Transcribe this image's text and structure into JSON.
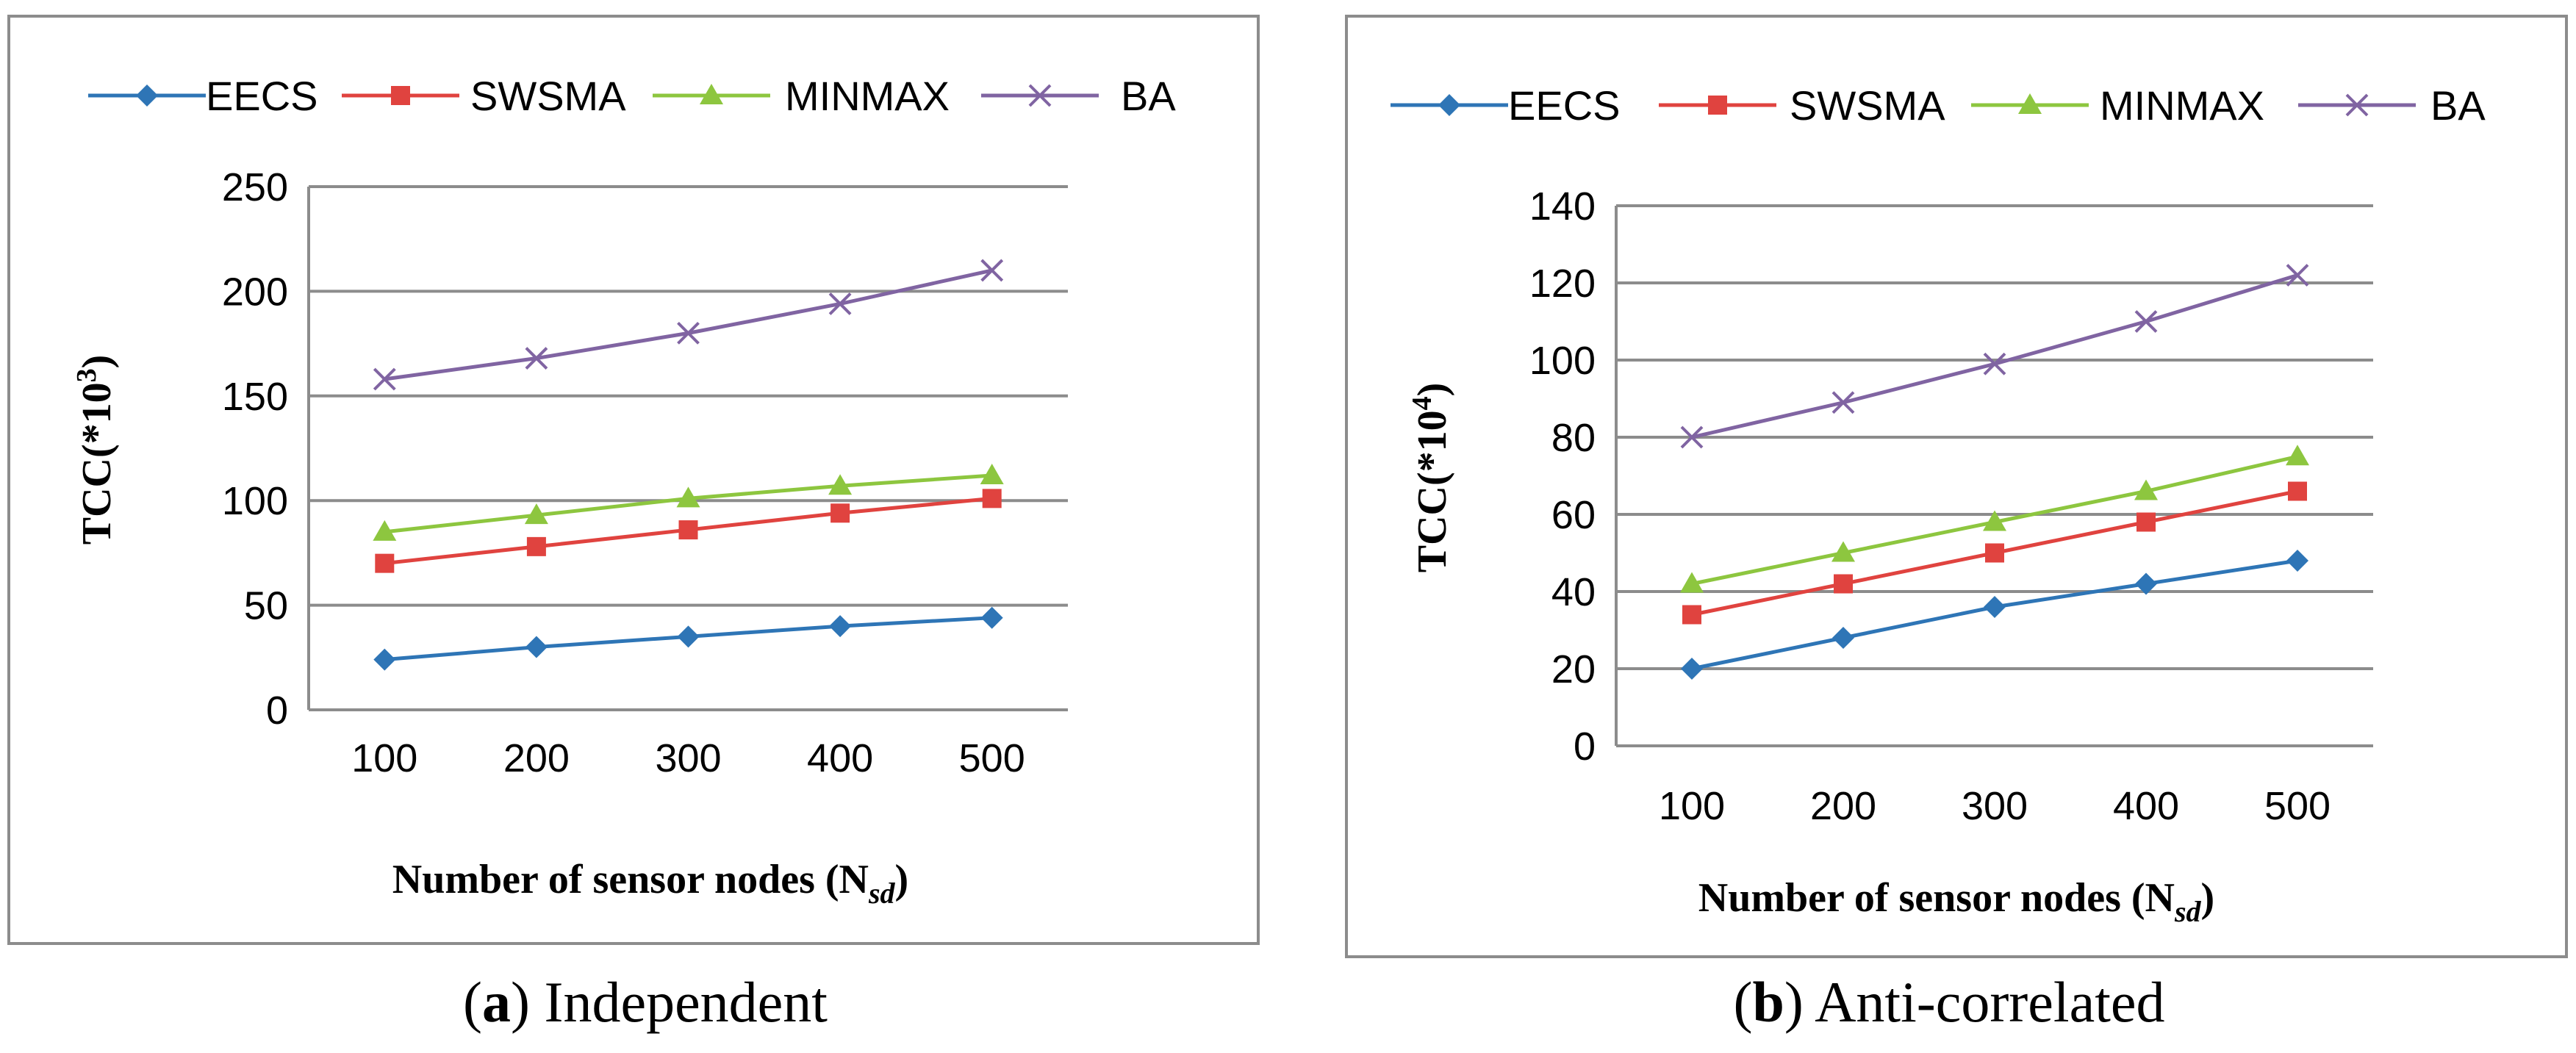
{
  "chart_data": [
    {
      "type": "line",
      "panel_label": "a",
      "caption": "Independent",
      "categories": [
        "100",
        "200",
        "300",
        "400",
        "500"
      ],
      "x": [
        100,
        200,
        300,
        400,
        500
      ],
      "ylim": [
        0,
        250
      ],
      "yticks": [
        "0",
        "50",
        "100",
        "150",
        "200",
        "250"
      ],
      "xlabel_main": "Number of sensor nodes (N",
      "xlabel_sub": "sd",
      "xlabel_close": ")",
      "ylabel_main": "TCC(*10",
      "ylabel_sup": "3",
      "ylabel_close": ")",
      "grid": true,
      "legend_position": "top",
      "series": [
        {
          "name": "EECS",
          "color": "#2E75B6",
          "marker": "diamond",
          "values": [
            24,
            30,
            35,
            40,
            44
          ]
        },
        {
          "name": "SWSMA",
          "color": "#E0433F",
          "marker": "square",
          "values": [
            70,
            78,
            86,
            94,
            101
          ]
        },
        {
          "name": "MINMAX",
          "color": "#8DC63F",
          "marker": "triangle",
          "values": [
            85,
            93,
            101,
            107,
            112
          ]
        },
        {
          "name": "BA",
          "color": "#8064A2",
          "marker": "x",
          "values": [
            158,
            168,
            180,
            194,
            210
          ]
        }
      ]
    },
    {
      "type": "line",
      "panel_label": "b",
      "caption": "Anti-correlated",
      "categories": [
        "100",
        "200",
        "300",
        "400",
        "500"
      ],
      "x": [
        100,
        200,
        300,
        400,
        500
      ],
      "ylim": [
        0,
        140
      ],
      "yticks": [
        "0",
        "20",
        "40",
        "60",
        "80",
        "100",
        "120",
        "140"
      ],
      "xlabel_main": "Number of sensor nodes (N",
      "xlabel_sub": "sd",
      "xlabel_close": ")",
      "ylabel_main": "TCC(*10",
      "ylabel_sup": "4",
      "ylabel_close": ")",
      "grid": true,
      "legend_position": "top",
      "series": [
        {
          "name": "EECS",
          "color": "#2E75B6",
          "marker": "diamond",
          "values": [
            20,
            28,
            36,
            42,
            48
          ]
        },
        {
          "name": "SWSMA",
          "color": "#E0433F",
          "marker": "square",
          "values": [
            34,
            42,
            50,
            58,
            66
          ]
        },
        {
          "name": "MINMAX",
          "color": "#8DC63F",
          "marker": "triangle",
          "values": [
            42,
            50,
            58,
            66,
            75
          ]
        },
        {
          "name": "BA",
          "color": "#8064A2",
          "marker": "x",
          "values": [
            80,
            89,
            99,
            110,
            122
          ]
        }
      ]
    }
  ]
}
